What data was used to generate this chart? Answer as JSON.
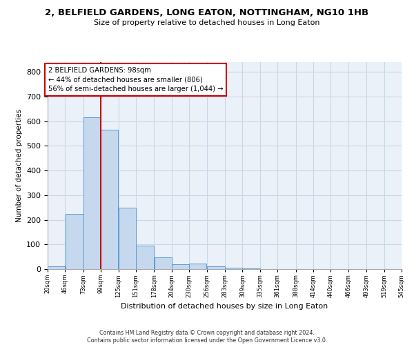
{
  "title": "2, BELFIELD GARDENS, LONG EATON, NOTTINGHAM, NG10 1HB",
  "subtitle": "Size of property relative to detached houses in Long Eaton",
  "xlabel": "Distribution of detached houses by size in Long Eaton",
  "ylabel": "Number of detached properties",
  "bar_values": [
    10,
    225,
    615,
    565,
    250,
    95,
    48,
    20,
    22,
    12,
    5,
    4,
    0,
    0,
    0,
    0,
    0,
    0,
    0,
    0
  ],
  "bin_edges": [
    20,
    46,
    73,
    99,
    125,
    151,
    178,
    204,
    230,
    256,
    283,
    309,
    335,
    361,
    388,
    414,
    440,
    466,
    493,
    519,
    545
  ],
  "tick_labels": [
    "20sqm",
    "46sqm",
    "73sqm",
    "99sqm",
    "125sqm",
    "151sqm",
    "178sqm",
    "204sqm",
    "230sqm",
    "256sqm",
    "283sqm",
    "309sqm",
    "335sqm",
    "361sqm",
    "388sqm",
    "414sqm",
    "440sqm",
    "466sqm",
    "493sqm",
    "519sqm",
    "545sqm"
  ],
  "bar_color": "#c5d8ed",
  "bar_edge_color": "#5b9bd5",
  "property_line_x": 99,
  "annotation_text": "2 BELFIELD GARDENS: 98sqm\n← 44% of detached houses are smaller (806)\n56% of semi-detached houses are larger (1,044) →",
  "annotation_box_color": "#cc0000",
  "ylim": [
    0,
    840
  ],
  "yticks": [
    0,
    100,
    200,
    300,
    400,
    500,
    600,
    700,
    800
  ],
  "grid_color": "#c8d8e8",
  "bg_color": "#eaf1f8",
  "footer_line1": "Contains HM Land Registry data © Crown copyright and database right 2024.",
  "footer_line2": "Contains public sector information licensed under the Open Government Licence v3.0."
}
